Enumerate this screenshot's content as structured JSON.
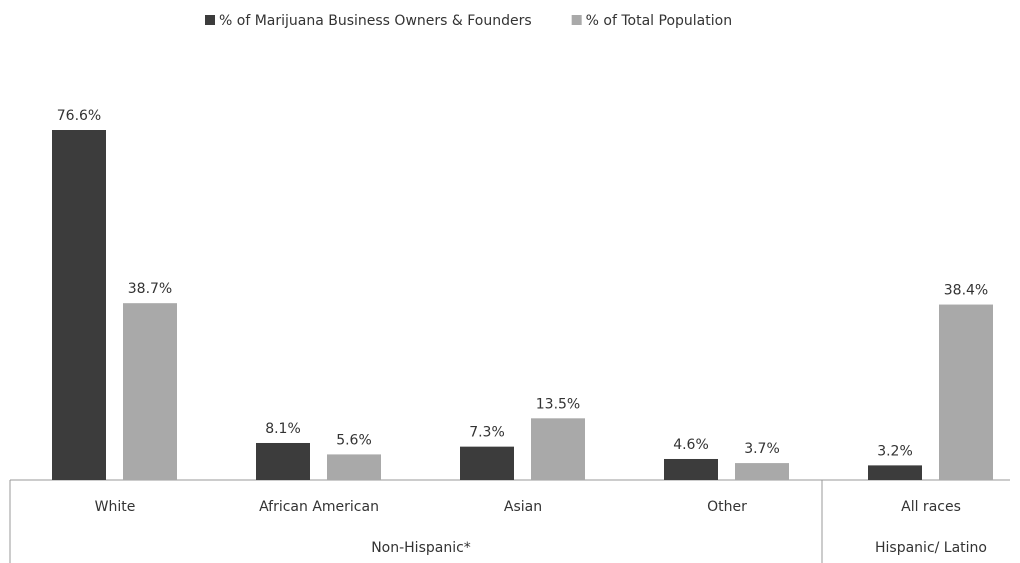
{
  "chart_data": {
    "type": "bar",
    "categories": [
      "White",
      "African American",
      "Asian",
      "Other",
      "All races"
    ],
    "groups": [
      "Non-Hispanic*",
      "Hispanic/ Latino"
    ],
    "series": [
      {
        "name": "% of Marijuana Business Owners & Founders",
        "color": "#3c3c3c",
        "values": [
          76.6,
          8.1,
          7.3,
          4.6,
          3.2
        ],
        "value_labels": [
          "76.6%",
          "8.1%",
          "7.3%",
          "4.6%",
          "3.2%"
        ]
      },
      {
        "name": "% of Total Population",
        "color": "#a9a9a9",
        "values": [
          38.7,
          5.6,
          13.5,
          3.7,
          38.4
        ],
        "value_labels": [
          "38.7%",
          "5.6%",
          "13.5%",
          "3.7%",
          "38.4%"
        ]
      }
    ],
    "legend": "top"
  }
}
